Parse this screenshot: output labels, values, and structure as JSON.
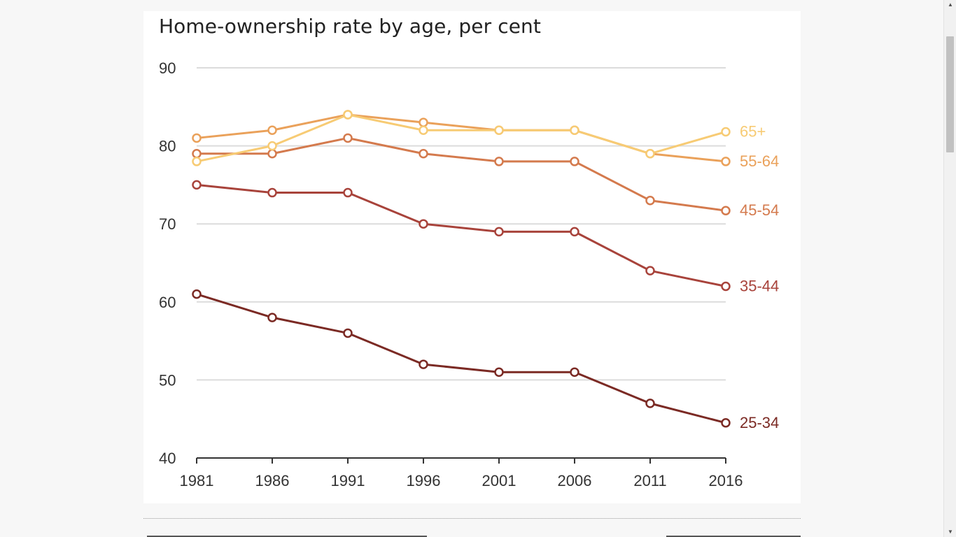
{
  "chart_data": {
    "type": "line",
    "title": "Home-ownership rate by age, per cent",
    "x": [
      "1981",
      "1986",
      "1991",
      "1996",
      "2001",
      "2006",
      "2011",
      "2016"
    ],
    "ylim": [
      40,
      90
    ],
    "yticks": [
      "40",
      "50",
      "60",
      "70",
      "80",
      "90"
    ],
    "xlabel": "",
    "ylabel": "",
    "grid": true,
    "series": [
      {
        "name": "25-34",
        "color": "#7b2a24",
        "values": [
          61,
          58,
          56,
          52,
          51,
          51,
          47,
          44.5
        ]
      },
      {
        "name": "35-44",
        "color": "#a8433b",
        "values": [
          75,
          74,
          74,
          70,
          69,
          69,
          64,
          62
        ]
      },
      {
        "name": "45-54",
        "color": "#d47a4d",
        "values": [
          79,
          79,
          81,
          79,
          78,
          78,
          73,
          71.7
        ]
      },
      {
        "name": "55-64",
        "color": "#eaa15a",
        "values": [
          81,
          82,
          84,
          83,
          82,
          82,
          79,
          78
        ]
      },
      {
        "name": "65+",
        "color": "#f7cb74",
        "values": [
          78,
          80,
          84,
          82,
          82,
          82,
          79,
          81.8
        ]
      }
    ]
  },
  "scrollbar": {
    "up_arrow": "▲",
    "down_arrow": "▼"
  }
}
